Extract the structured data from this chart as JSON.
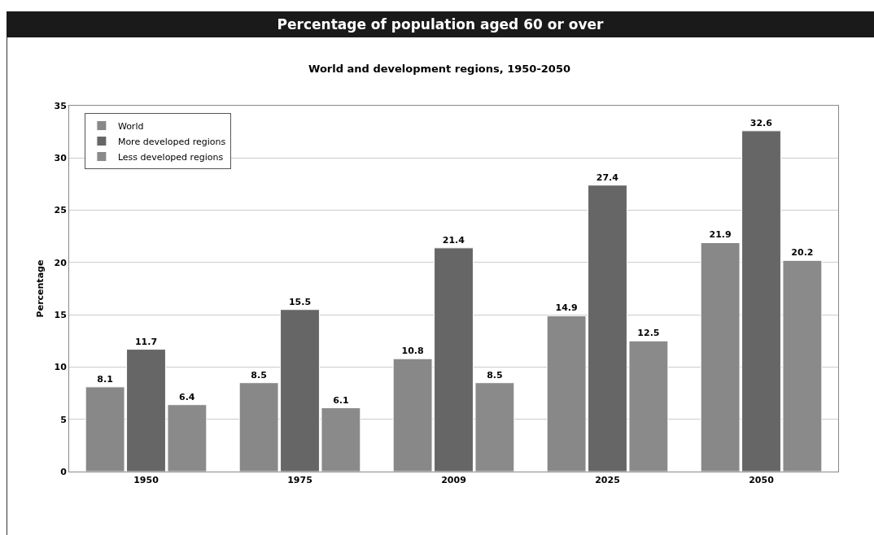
{
  "chart_data": {
    "type": "bar",
    "title": "Percentage of population aged 60 or over",
    "subtitle": "World and development regions, 1950-2050",
    "ylabel": "Percentage",
    "categories": [
      "1950",
      "1975",
      "2009",
      "2025",
      "2050"
    ],
    "series": [
      {
        "name": "World",
        "color": "#888888",
        "values": [
          8.1,
          8.5,
          10.8,
          14.9,
          21.9
        ]
      },
      {
        "name": "More developed regions",
        "color": "#666666",
        "values": [
          11.7,
          15.5,
          21.4,
          27.4,
          32.6
        ]
      },
      {
        "name": "Less developed regions",
        "color": "#8a8a8a",
        "values": [
          6.4,
          6.1,
          8.5,
          12.5,
          20.2
        ]
      }
    ],
    "ylim": [
      0,
      35
    ],
    "yticks": [
      0,
      5,
      10,
      15,
      20,
      25,
      30,
      35
    ],
    "grid": "y",
    "legend": "top left",
    "data_labels": true
  }
}
